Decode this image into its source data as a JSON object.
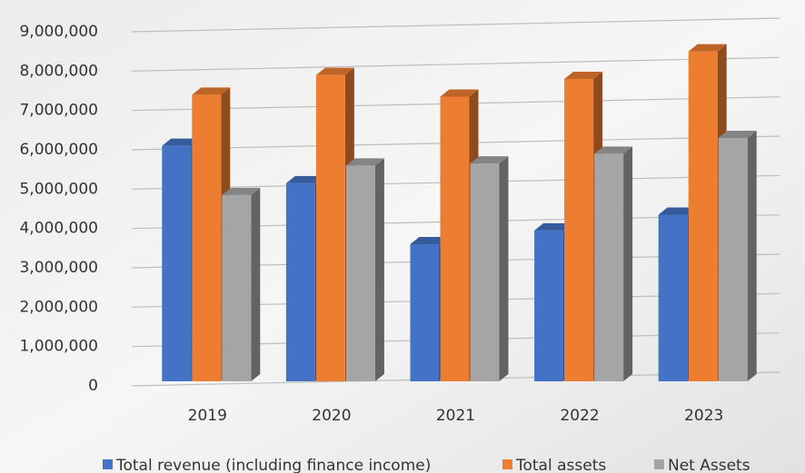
{
  "chart_data": {
    "type": "bar3d",
    "categories": [
      "2019",
      "2020",
      "2021",
      "2022",
      "2023"
    ],
    "series": [
      {
        "name": "Total revenue (including finance income)",
        "color": "#4472c4",
        "values": [
          6100000,
          5150000,
          3600000,
          3950000,
          4350000
        ]
      },
      {
        "name": "Total assets",
        "color": "#ed7d31",
        "values": [
          7400000,
          7900000,
          7350000,
          7800000,
          8500000
        ]
      },
      {
        "name": "Net Assets",
        "color": "#a5a5a5",
        "values": [
          4850000,
          5600000,
          5650000,
          5900000,
          6300000
        ]
      }
    ],
    "ylim": [
      0,
      9000000
    ],
    "yticks": [
      0,
      {
        "value": 1000000,
        "label": "1,000,000"
      },
      {
        "value": 2000000,
        "label": "2,000,000"
      },
      {
        "value": 3000000,
        "label": "3,000,000"
      },
      {
        "value": 4000000,
        "label": "4,000,000"
      },
      {
        "value": 5000000,
        "label": "5,000,000"
      },
      {
        "value": 6000000,
        "label": "6,000,000"
      },
      {
        "value": 7000000,
        "label": "7,000,000"
      },
      {
        "value": 8000000,
        "label": "8,000,000"
      },
      {
        "value": 9000000,
        "label": "9,000,000"
      }
    ],
    "grid": true,
    "legend": "bottom"
  }
}
